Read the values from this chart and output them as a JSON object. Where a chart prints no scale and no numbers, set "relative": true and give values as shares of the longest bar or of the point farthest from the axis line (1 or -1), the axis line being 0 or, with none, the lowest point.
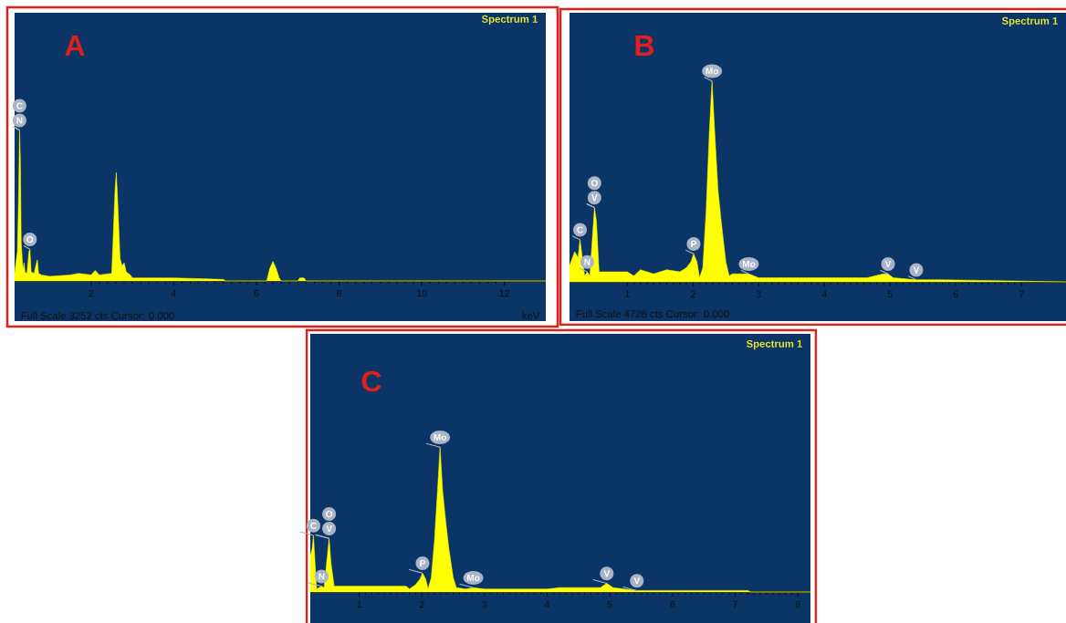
{
  "chart_data": [
    {
      "type": "area",
      "title": "A",
      "subtitle": "Spectrum 1",
      "xlabel": "keV",
      "relative": true,
      "color": "#ffff00",
      "xlim": [
        0.15,
        13.0
      ],
      "xticks": [
        2,
        4,
        6,
        8,
        10,
        12
      ],
      "x": [
        0.15,
        0.22,
        0.25,
        0.27,
        0.29,
        0.31,
        0.35,
        0.38,
        0.4,
        0.45,
        0.5,
        0.52,
        0.55,
        0.62,
        0.68,
        0.7,
        0.73,
        0.8,
        1.0,
        1.5,
        1.7,
        2.0,
        2.1,
        2.2,
        2.5,
        2.58,
        2.61,
        2.64,
        2.7,
        2.75,
        2.8,
        2.85,
        2.95,
        3.0,
        4.0,
        5.2,
        5.25,
        6.25,
        6.32,
        6.4,
        6.48,
        6.55,
        6.6,
        7.0,
        7.05,
        7.15,
        7.2,
        13.0
      ],
      "values": [
        0.05,
        0.2,
        0.6,
        1.0,
        0.8,
        0.25,
        0.08,
        0.12,
        0.06,
        0.05,
        0.2,
        0.21,
        0.06,
        0.05,
        0.12,
        0.14,
        0.05,
        0.04,
        0.03,
        0.04,
        0.05,
        0.04,
        0.07,
        0.04,
        0.05,
        0.6,
        0.72,
        0.55,
        0.15,
        0.1,
        0.12,
        0.06,
        0.04,
        0.02,
        0.02,
        0.01,
        0,
        0,
        0.08,
        0.13,
        0.08,
        0.02,
        0,
        0,
        0.02,
        0.02,
        0,
        0
      ],
      "annotations": [
        "Full Scale 3252 cts Cursor: 0.000",
        {
          "text": "N",
          "x": 0.27,
          "y": 1.0
        },
        {
          "text": "C",
          "x": 0.27,
          "y": 1.0
        },
        {
          "text": "O",
          "x": 0.52,
          "y": 0.21
        }
      ]
    },
    {
      "type": "area",
      "title": "B",
      "subtitle": "Spectrum 1",
      "relative": true,
      "color": "#ffff00",
      "xlim": [
        0.12,
        7.68
      ],
      "xticks": [
        1,
        2,
        3,
        4,
        5,
        6,
        7
      ],
      "x": [
        0.12,
        0.2,
        0.25,
        0.28,
        0.35,
        0.39,
        0.43,
        0.5,
        0.53,
        0.57,
        0.62,
        0.7,
        1.0,
        1.1,
        1.2,
        1.4,
        1.6,
        1.8,
        1.9,
        1.97,
        2.01,
        2.06,
        2.1,
        2.15,
        2.2,
        2.25,
        2.29,
        2.33,
        2.38,
        2.43,
        2.5,
        2.55,
        2.6,
        2.75,
        2.85,
        3.0,
        4.0,
        4.65,
        4.9,
        4.97,
        5.05,
        5.4,
        5.8,
        7.68
      ],
      "values": [
        0.08,
        0.15,
        0.12,
        0.21,
        0.03,
        0.05,
        0.03,
        0.37,
        0.3,
        0.05,
        0.05,
        0.05,
        0.05,
        0.03,
        0.06,
        0.04,
        0.06,
        0.05,
        0.07,
        0.1,
        0.14,
        0.1,
        0.02,
        0.07,
        0.35,
        0.75,
        1.0,
        0.75,
        0.46,
        0.3,
        0.1,
        0.03,
        0.04,
        0.04,
        0.04,
        0.02,
        0.02,
        0.02,
        0.04,
        0.04,
        0.02,
        0.01,
        0.01,
        0.0
      ],
      "annotations": [
        "Full Scale 4728 cts Cursor: 0.000",
        {
          "text": "Mo",
          "x": 2.29,
          "y": 1.0
        },
        {
          "text": "V",
          "x": 0.5,
          "y": 0.37
        },
        {
          "text": "O",
          "x": 0.5,
          "y": 0.37
        },
        {
          "text": "C",
          "x": 0.28,
          "y": 0.21
        },
        {
          "text": "N",
          "x": 0.39,
          "y": 0.05
        },
        {
          "text": "P",
          "x": 2.01,
          "y": 0.14
        },
        {
          "text": "Mo",
          "x": 2.85,
          "y": 0.04
        },
        {
          "text": "V",
          "x": 4.97,
          "y": 0.04
        },
        {
          "text": "V",
          "x": 5.4,
          "y": 0.01
        }
      ]
    },
    {
      "type": "area",
      "title": "C",
      "subtitle": "Spectrum 1",
      "relative": true,
      "color": "#ffff00",
      "xlim": [
        0.22,
        8.2
      ],
      "xticks": [
        1,
        2,
        3,
        4,
        5,
        6,
        7,
        8
      ],
      "x": [
        0.22,
        0.25,
        0.27,
        0.32,
        0.36,
        0.4,
        0.44,
        0.52,
        0.55,
        0.6,
        0.8,
        1.0,
        1.5,
        1.75,
        1.8,
        1.9,
        1.97,
        2.01,
        2.06,
        2.1,
        2.15,
        2.2,
        2.25,
        2.29,
        2.33,
        2.38,
        2.43,
        2.5,
        2.55,
        2.7,
        2.82,
        3.0,
        4.0,
        4.2,
        4.85,
        4.95,
        5.05,
        5.43,
        7.2,
        7.25,
        8.2
      ],
      "values": [
        0.25,
        0.3,
        0.39,
        0.02,
        0.03,
        0.04,
        0.03,
        0.37,
        0.2,
        0.04,
        0.04,
        0.04,
        0.04,
        0.04,
        0.02,
        0.05,
        0.09,
        0.13,
        0.09,
        0.02,
        0.1,
        0.35,
        0.7,
        1.0,
        0.7,
        0.49,
        0.3,
        0.1,
        0.03,
        0.02,
        0.03,
        0.02,
        0.02,
        0.03,
        0.03,
        0.06,
        0.03,
        0.01,
        0.01,
        0,
        0
      ],
      "annotations": [
        {
          "text": "Mo",
          "x": 2.29,
          "y": 1.0
        },
        {
          "text": "C",
          "x": 0.27,
          "y": 0.39
        },
        {
          "text": "V",
          "x": 0.52,
          "y": 0.37
        },
        {
          "text": "O",
          "x": 0.52,
          "y": 0.37
        },
        {
          "text": "N",
          "x": 0.4,
          "y": 0.04
        },
        {
          "text": "P",
          "x": 2.01,
          "y": 0.13
        },
        {
          "text": "Mo",
          "x": 2.82,
          "y": 0.03
        },
        {
          "text": "V",
          "x": 4.95,
          "y": 0.06
        },
        {
          "text": "V",
          "x": 5.43,
          "y": 0.01
        }
      ]
    }
  ]
}
